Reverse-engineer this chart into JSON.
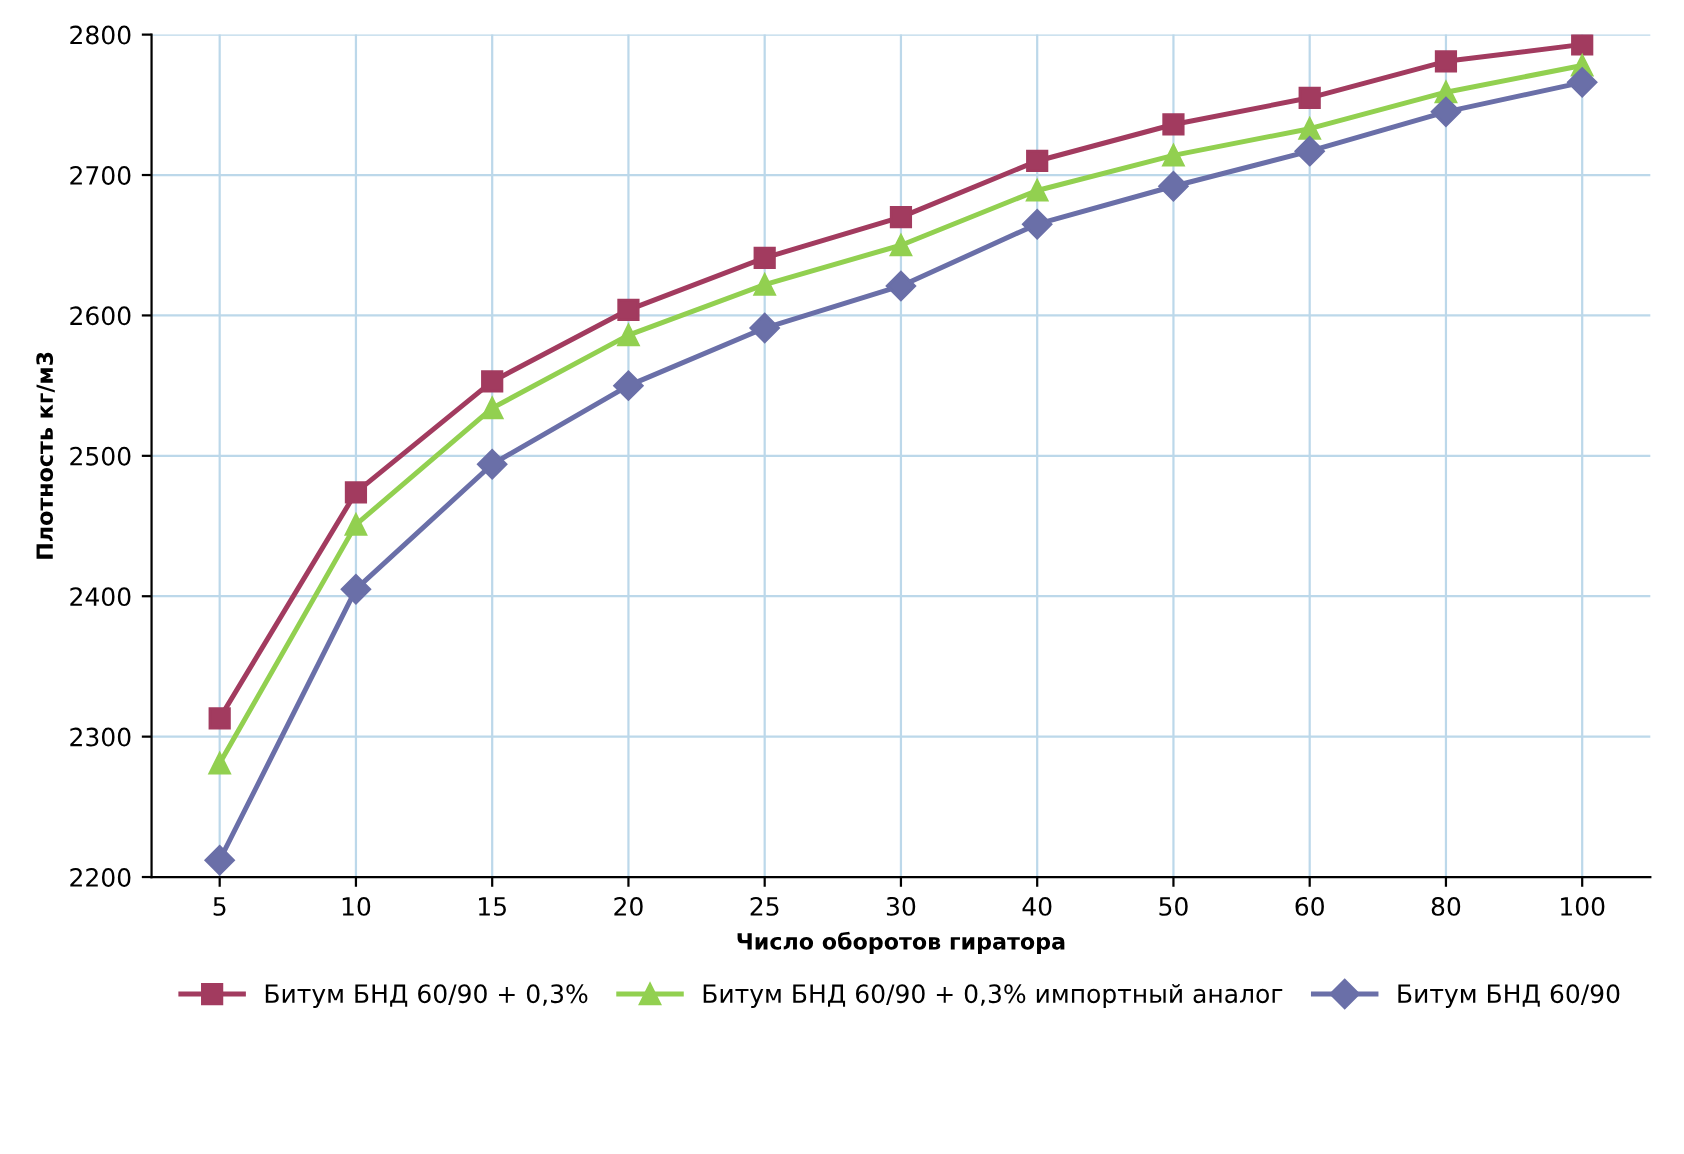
{
  "chart_data": {
    "type": "line",
    "xlabel": "Число оборотов гиратора",
    "ylabel": "Плотность кг/м3",
    "categories": [
      "5",
      "10",
      "15",
      "20",
      "25",
      "30",
      "40",
      "50",
      "60",
      "80",
      "100"
    ],
    "series": [
      {
        "name": "Битум БНД 60/90 + 0,3%",
        "color": "#a23b5f",
        "marker": "square",
        "values": [
          2313,
          2474,
          2553,
          2604,
          2641,
          2670,
          2710,
          2736,
          2755,
          2781,
          2793
        ]
      },
      {
        "name": "Битум БНД 60/90 + 0,3% импортный аналог",
        "color": "#92d050",
        "marker": "triangle",
        "values": [
          2281,
          2451,
          2534,
          2586,
          2622,
          2650,
          2689,
          2714,
          2733,
          2759,
          2778
        ]
      },
      {
        "name": "Битум БНД 60/90",
        "color": "#6a6fa8",
        "marker": "diamond",
        "values": [
          2212,
          2405,
          2494,
          2550,
          2591,
          2621,
          2665,
          2692,
          2717,
          2745,
          2766
        ]
      }
    ],
    "ylim": [
      2200,
      2800
    ],
    "yticks": [
      2200,
      2300,
      2400,
      2500,
      2600,
      2700,
      2800
    ],
    "grid": true,
    "legend": "bottom",
    "line_style": "solid"
  }
}
